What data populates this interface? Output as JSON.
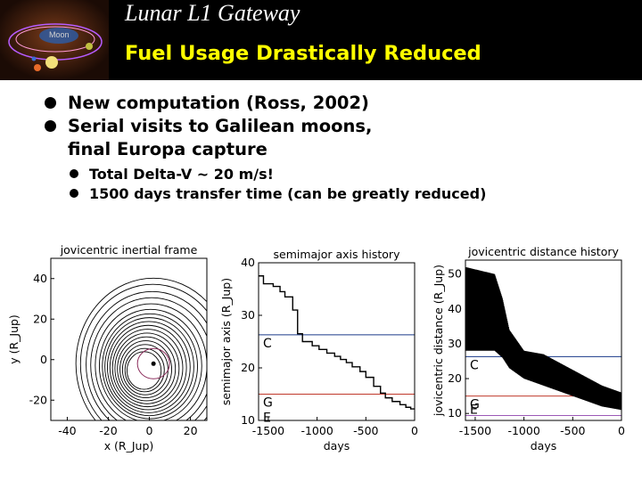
{
  "header": {
    "title": "Lunar L1 Gateway",
    "subtitle": "Fuel Usage Drastically Reduced",
    "logo_label": "Moon"
  },
  "bullets": [
    {
      "level": 1,
      "text": "New computation (Ross, 2002)"
    },
    {
      "level": 1,
      "text": "Serial visits to Galilean moons,",
      "cont": "final Europa capture"
    },
    {
      "level": 2,
      "text": "Total Delta-V ~ 20 m/s!"
    },
    {
      "level": 2,
      "text": "1500 days transfer time (can be greatly reduced)"
    }
  ],
  "colors": {
    "header_bg": "#000000",
    "title": "#ffffff",
    "subtitle": "#ffff00",
    "moon_line_C": "#1a3a8a",
    "moon_line_G": "#c0392b",
    "moon_line_E": "#9b59b6"
  },
  "chart_data": [
    {
      "type": "line",
      "title": "jovicentric inertial frame",
      "xlabel": "x (R_Jup)",
      "ylabel": "y (R_Jup)",
      "xticks": [
        -40,
        -20,
        0,
        20
      ],
      "yticks": [
        40,
        20,
        0,
        -20
      ],
      "xlim": [
        -48,
        28
      ],
      "ylim": [
        -30,
        50
      ]
    },
    {
      "type": "line",
      "title": "semimajor axis history",
      "xlabel": "days",
      "ylabel": "semimajor axis (R_Jup)",
      "xticks": [
        -1500,
        -1000,
        -500,
        0
      ],
      "yticks": [
        40,
        30,
        20,
        10
      ],
      "xlim": [
        -1600,
        0
      ],
      "ylim": [
        10,
        40
      ],
      "moon_lines": [
        {
          "name": "C",
          "value": 26.3
        },
        {
          "name": "G",
          "value": 15.0
        },
        {
          "name": "E",
          "value": 9.4
        }
      ],
      "series": [
        {
          "x": [
            -1600,
            -1550,
            -1550,
            -1450,
            -1450,
            -1380,
            -1380,
            -1330,
            -1330,
            -1250,
            -1250,
            -1200,
            -1200,
            -1150,
            -1150,
            -1050,
            -1050,
            -980,
            -980,
            -900,
            -900,
            -820,
            -820,
            -760,
            -760,
            -700,
            -700,
            -640,
            -640,
            -560,
            -560,
            -500,
            -500,
            -420,
            -420,
            -350,
            -350,
            -300,
            -300,
            -230,
            -230,
            -150,
            -150,
            -90,
            -90,
            -40,
            -40,
            0
          ],
          "y": [
            37.5,
            37.5,
            36,
            36,
            35.5,
            35.5,
            34.5,
            34.5,
            33.5,
            33.5,
            31,
            31,
            26.5,
            26.5,
            25,
            25,
            24.2,
            24.2,
            23.5,
            23.5,
            22.8,
            22.8,
            22.2,
            22.2,
            21.6,
            21.6,
            21.0,
            21.0,
            20.2,
            20.2,
            19.3,
            19.3,
            18.2,
            18.2,
            16.5,
            16.5,
            15.2,
            15.2,
            14.3,
            14.3,
            13.6,
            13.6,
            13.0,
            13.0,
            12.5,
            12.5,
            12.2,
            12.2
          ]
        }
      ]
    },
    {
      "type": "line",
      "title": "jovicentric distance history",
      "xlabel": "days",
      "ylabel": "jovicentric distance (R_Jup)",
      "xticks": [
        -1500,
        -1000,
        -500,
        0
      ],
      "yticks": [
        50,
        40,
        30,
        20,
        10
      ],
      "xlim": [
        -1600,
        0
      ],
      "ylim": [
        8,
        54
      ],
      "moon_lines": [
        {
          "name": "C",
          "value": 26.3
        },
        {
          "name": "G",
          "value": 15.0
        },
        {
          "name": "E",
          "value": 9.4
        }
      ],
      "envelope": {
        "x": [
          -1600,
          -1300,
          -1220,
          -1150,
          -1000,
          -800,
          -600,
          -400,
          -200,
          0
        ],
        "max": [
          52,
          50,
          43,
          34,
          28,
          27,
          24,
          21,
          18,
          16
        ],
        "min": [
          28,
          28,
          26,
          23,
          20,
          18,
          16,
          14,
          12,
          11
        ]
      }
    }
  ]
}
